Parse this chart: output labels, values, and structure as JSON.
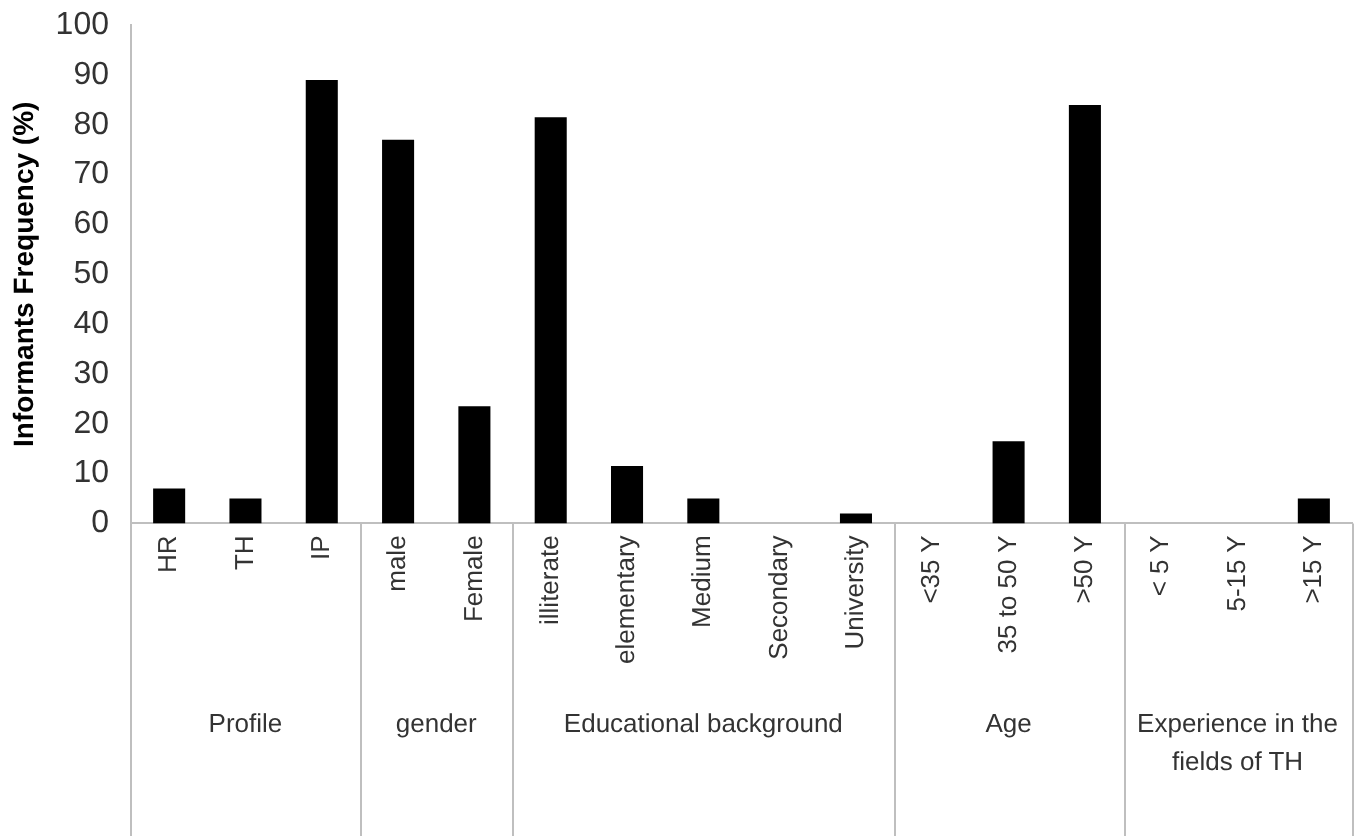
{
  "chart_data": {
    "type": "bar",
    "ylabel": "Informants Frequency (%)",
    "categories": [
      "HR",
      "TH",
      "IP",
      "male",
      "Female",
      "illiterate",
      "elementary",
      "Medium",
      "Secondary",
      "University",
      "<35 Y",
      "35 to 50 Y",
      ">50 Y",
      "< 5 Y",
      "5-15 Y",
      ">15 Y"
    ],
    "values": [
      7,
      5,
      89,
      77,
      23.5,
      81.5,
      11.5,
      5,
      0,
      2,
      0,
      16.5,
      84,
      0,
      0,
      5
    ],
    "color": "#000000",
    "ylim": [
      0,
      100
    ],
    "yticks": [
      0,
      10,
      20,
      30,
      40,
      50,
      60,
      70,
      80,
      90,
      100
    ],
    "grid": false,
    "legend": false,
    "annotations": [
      "Profile",
      "gender",
      "Educational background",
      "Age",
      "Experience in the fields of TH"
    ]
  }
}
